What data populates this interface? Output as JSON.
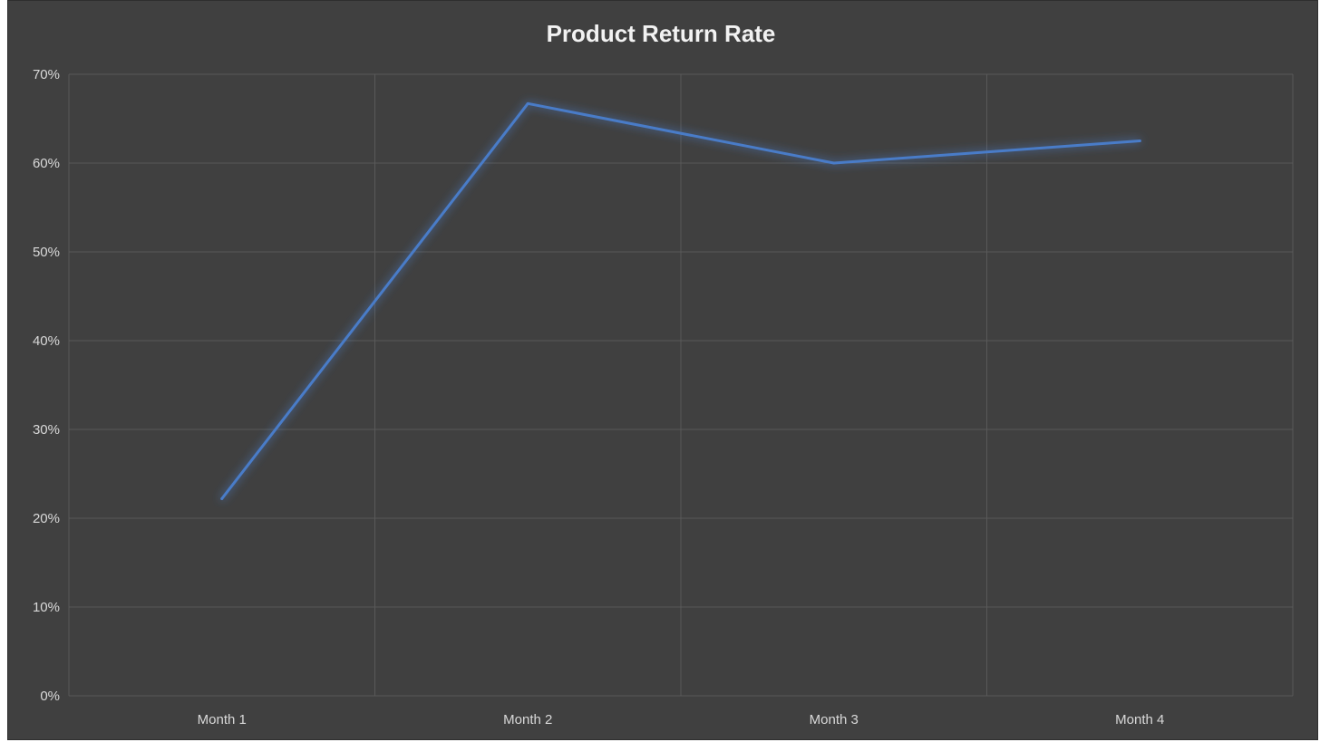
{
  "chart_data": {
    "type": "line",
    "title": "Product Return Rate",
    "xlabel": "",
    "ylabel": "",
    "categories": [
      "Month 1",
      "Month 2",
      "Month 3",
      "Month 4"
    ],
    "series": [
      {
        "values": [
          0.222,
          0.667,
          0.6,
          0.625
        ]
      }
    ],
    "ylim": [
      0,
      0.7
    ],
    "yticks": [
      0,
      0.1,
      0.2,
      0.3,
      0.4,
      0.5,
      0.6,
      0.7
    ],
    "ytick_labels": [
      "0%",
      "10%",
      "20%",
      "30%",
      "40%",
      "50%",
      "60%",
      "70%"
    ],
    "grid": true,
    "legend": "none",
    "colors": {
      "background": "#404040",
      "grid": "#595959",
      "line": "#4a7cc8",
      "text": "#d9d9d9",
      "title": "#f2f2f2"
    }
  }
}
